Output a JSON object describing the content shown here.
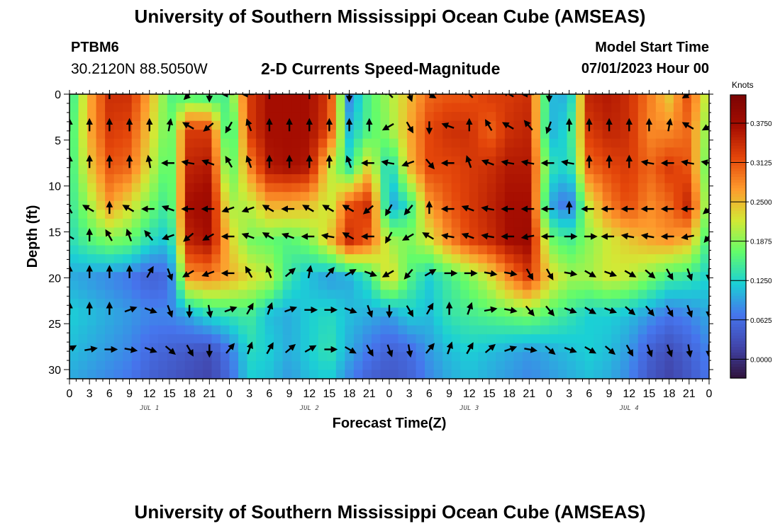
{
  "header": {
    "title": "University of Southern Mississippi Ocean Cube (AMSEAS)",
    "station_id": "PTBM6",
    "coords": "30.2120N  88.5050W",
    "chart_title": "2-D Currents Speed-Magnitude",
    "start_label": "Model Start Time",
    "start_value": "07/01/2023 Hour 00"
  },
  "footer": {
    "title": "University of Southern Mississippi Ocean Cube (AMSEAS)"
  },
  "chart_data": {
    "type": "heatmap",
    "title": "2-D Currents Speed-Magnitude",
    "xlabel": "Forecast Time(Z)",
    "ylabel": "Depth (ft)",
    "xlim": [
      0,
      96
    ],
    "ylim": [
      31,
      0
    ],
    "x_tick_values": [
      0,
      3,
      6,
      9,
      12,
      15,
      18,
      21,
      24,
      27,
      30,
      33,
      36,
      39,
      42,
      45,
      48,
      51,
      54,
      57,
      60,
      63,
      66,
      69,
      72,
      75,
      78,
      81,
      84,
      87,
      90,
      93,
      96
    ],
    "x_tick_labels": [
      "0",
      "3",
      "6",
      "9",
      "12",
      "15",
      "18",
      "21",
      "0",
      "3",
      "6",
      "9",
      "12",
      "15",
      "18",
      "21",
      "0",
      "3",
      "6",
      "9",
      "12",
      "15",
      "18",
      "21",
      "0",
      "3",
      "6",
      "9",
      "12",
      "15",
      "18",
      "21",
      "0"
    ],
    "day_labels": [
      {
        "hour": 12,
        "text": "JUL 1"
      },
      {
        "hour": 36,
        "text": "JUL 2"
      },
      {
        "hour": 60,
        "text": "JUL 3"
      },
      {
        "hour": 84,
        "text": "JUL 4"
      }
    ],
    "y_tick_values": [
      0,
      5,
      10,
      15,
      20,
      25,
      30
    ],
    "y_tick_labels": [
      "0",
      "5",
      "10",
      "15",
      "20",
      "25",
      "30"
    ],
    "colorbar": {
      "label": "Knots",
      "vmin": -0.03,
      "vmax": 0.42,
      "ticks": [
        0.0,
        0.0625,
        0.125,
        0.1875,
        0.25,
        0.3125,
        0.375
      ],
      "tick_labels": [
        "0.0000",
        "0.0625",
        "0.1250",
        "0.1875",
        "0.2500",
        "0.3125",
        "0.3750"
      ],
      "colors": [
        "#30123b",
        "#4145ab",
        "#4675ed",
        "#1bd0d5",
        "#62fc6b",
        "#d2e935",
        "#fe9b2d",
        "#e4460a",
        "#a50d01",
        "#7a0403"
      ]
    },
    "speed_grid": {
      "note": "approximate speed (knots), rows = depth levels, cols = forecast hours",
      "hours": [
        0,
        3,
        6,
        9,
        12,
        15,
        18,
        21,
        24,
        27,
        30,
        33,
        36,
        39,
        42,
        45,
        48,
        51,
        54,
        57,
        60,
        63,
        66,
        69,
        72,
        75,
        78,
        81,
        84,
        87,
        90,
        93,
        96
      ],
      "depths": [
        0,
        4,
        8,
        12,
        16,
        20,
        24,
        28,
        31
      ],
      "values": [
        [
          0.13,
          0.26,
          0.34,
          0.34,
          0.26,
          0.16,
          0.15,
          0.14,
          0.16,
          0.33,
          0.37,
          0.37,
          0.37,
          0.33,
          0.08,
          0.16,
          0.2,
          0.25,
          0.3,
          0.31,
          0.31,
          0.33,
          0.33,
          0.34,
          0.11,
          0.1,
          0.35,
          0.36,
          0.34,
          0.29,
          0.24,
          0.32,
          0.19
        ],
        [
          0.14,
          0.26,
          0.33,
          0.32,
          0.24,
          0.16,
          0.33,
          0.33,
          0.12,
          0.33,
          0.37,
          0.37,
          0.37,
          0.32,
          0.11,
          0.16,
          0.19,
          0.26,
          0.32,
          0.34,
          0.34,
          0.3,
          0.34,
          0.35,
          0.1,
          0.13,
          0.33,
          0.35,
          0.34,
          0.28,
          0.28,
          0.3,
          0.17
        ],
        [
          0.14,
          0.24,
          0.31,
          0.3,
          0.22,
          0.15,
          0.35,
          0.36,
          0.15,
          0.28,
          0.36,
          0.37,
          0.36,
          0.22,
          0.14,
          0.24,
          0.11,
          0.25,
          0.32,
          0.32,
          0.33,
          0.34,
          0.36,
          0.36,
          0.14,
          0.12,
          0.3,
          0.32,
          0.33,
          0.3,
          0.33,
          0.31,
          0.15
        ],
        [
          0.14,
          0.2,
          0.27,
          0.23,
          0.18,
          0.14,
          0.37,
          0.38,
          0.2,
          0.21,
          0.26,
          0.26,
          0.25,
          0.21,
          0.31,
          0.34,
          0.09,
          0.14,
          0.27,
          0.31,
          0.33,
          0.35,
          0.37,
          0.37,
          0.1,
          0.06,
          0.22,
          0.29,
          0.32,
          0.28,
          0.3,
          0.35,
          0.16
        ],
        [
          0.13,
          0.16,
          0.18,
          0.17,
          0.13,
          0.11,
          0.35,
          0.37,
          0.24,
          0.18,
          0.17,
          0.16,
          0.18,
          0.24,
          0.34,
          0.3,
          0.2,
          0.18,
          0.22,
          0.28,
          0.32,
          0.34,
          0.37,
          0.38,
          0.18,
          0.15,
          0.19,
          0.22,
          0.24,
          0.26,
          0.27,
          0.25,
          0.14
        ],
        [
          0.1,
          0.09,
          0.08,
          0.07,
          0.05,
          0.06,
          0.27,
          0.28,
          0.26,
          0.23,
          0.21,
          0.14,
          0.11,
          0.09,
          0.1,
          0.14,
          0.24,
          0.16,
          0.12,
          0.15,
          0.18,
          0.22,
          0.28,
          0.33,
          0.24,
          0.2,
          0.2,
          0.22,
          0.21,
          0.18,
          0.15,
          0.14,
          0.12
        ],
        [
          0.12,
          0.11,
          0.1,
          0.09,
          0.08,
          0.08,
          0.1,
          0.13,
          0.14,
          0.15,
          0.11,
          0.1,
          0.12,
          0.13,
          0.11,
          0.1,
          0.09,
          0.12,
          0.11,
          0.14,
          0.15,
          0.16,
          0.17,
          0.18,
          0.16,
          0.14,
          0.12,
          0.12,
          0.11,
          0.09,
          0.07,
          0.08,
          0.1
        ],
        [
          0.11,
          0.1,
          0.09,
          0.08,
          0.06,
          0.05,
          0.04,
          0.03,
          0.07,
          0.13,
          0.12,
          0.1,
          0.12,
          0.14,
          0.1,
          0.07,
          0.05,
          0.06,
          0.09,
          0.11,
          0.12,
          0.11,
          0.1,
          0.09,
          0.1,
          0.11,
          0.12,
          0.11,
          0.09,
          0.05,
          0.03,
          0.05,
          0.08
        ],
        [
          0.1,
          0.09,
          0.08,
          0.07,
          0.05,
          0.04,
          0.03,
          0.02,
          0.06,
          0.12,
          0.11,
          0.09,
          0.11,
          0.12,
          0.08,
          0.05,
          0.04,
          0.05,
          0.08,
          0.1,
          0.11,
          0.1,
          0.09,
          0.08,
          0.09,
          0.1,
          0.11,
          0.1,
          0.08,
          0.04,
          0.02,
          0.04,
          0.07
        ]
      ]
    },
    "vectors": {
      "note": "arrow direction in degrees clockwise from up (north)",
      "hours": [
        0,
        3,
        6,
        9,
        12,
        15,
        18,
        21,
        24,
        27,
        30,
        33,
        36,
        39,
        42,
        45,
        48,
        51,
        54,
        57,
        60,
        63,
        66,
        69,
        72,
        75,
        78,
        81,
        84,
        87,
        90,
        93,
        96
      ],
      "rows": [
        {
          "depth": 0,
          "hours": [
            6,
            18,
            21,
            24,
            27,
            30,
            36,
            39,
            42,
            48,
            51,
            54,
            60,
            66,
            69,
            72,
            93
          ],
          "dirs": [
            0,
            225,
            180,
            270,
            270,
            0,
            0,
            0,
            180,
            315,
            160,
            120,
            315,
            300,
            270,
            180,
            240
          ]
        },
        {
          "depth": 3.5,
          "dirs": [
            0,
            0,
            0,
            0,
            0,
            10,
            300,
            230,
            210,
            340,
            0,
            0,
            0,
            0,
            0,
            0,
            240,
            150,
            180,
            290,
            0,
            330,
            300,
            320,
            200,
            0,
            0,
            0,
            0,
            0,
            10,
            300,
            240
          ]
        },
        {
          "depth": 7.5,
          "dirs": [
            0,
            0,
            0,
            0,
            350,
            270,
            280,
            290,
            330,
            340,
            0,
            0,
            0,
            0,
            340,
            270,
            280,
            250,
            140,
            270,
            340,
            290,
            280,
            280,
            270,
            280,
            0,
            0,
            0,
            280,
            270,
            280,
            280
          ]
        },
        {
          "depth": 12.5,
          "dirs": [
            330,
            300,
            0,
            300,
            270,
            290,
            270,
            270,
            250,
            250,
            300,
            270,
            300,
            300,
            300,
            230,
            210,
            220,
            0,
            270,
            290,
            280,
            270,
            270,
            270,
            0,
            270,
            270,
            270,
            270,
            270,
            270,
            230
          ]
        },
        {
          "depth": 15.5,
          "dirs": [
            300,
            0,
            330,
            340,
            320,
            250,
            230,
            240,
            270,
            290,
            300,
            290,
            270,
            280,
            300,
            270,
            210,
            240,
            300,
            280,
            290,
            280,
            270,
            260,
            270,
            90,
            90,
            270,
            280,
            280,
            270,
            260,
            220
          ]
        },
        {
          "depth": 19.5,
          "dirs": [
            0,
            0,
            0,
            0,
            30,
            160,
            240,
            250,
            270,
            330,
            340,
            50,
            10,
            40,
            60,
            110,
            240,
            220,
            60,
            90,
            90,
            100,
            100,
            150,
            150,
            100,
            120,
            110,
            120,
            130,
            150,
            160,
            180
          ]
        },
        {
          "depth": 23.5,
          "dirs": [
            0,
            0,
            0,
            70,
            110,
            160,
            180,
            170,
            70,
            30,
            20,
            70,
            90,
            90,
            110,
            160,
            180,
            150,
            30,
            0,
            20,
            80,
            100,
            140,
            140,
            110,
            120,
            110,
            130,
            140,
            150,
            160,
            180
          ]
        },
        {
          "depth": 27.8,
          "dirs": [
            60,
            80,
            90,
            100,
            110,
            130,
            150,
            180,
            40,
            20,
            30,
            50,
            60,
            90,
            120,
            150,
            160,
            170,
            40,
            20,
            30,
            50,
            70,
            100,
            130,
            110,
            120,
            130,
            150,
            160,
            160,
            170,
            180
          ]
        }
      ]
    }
  }
}
